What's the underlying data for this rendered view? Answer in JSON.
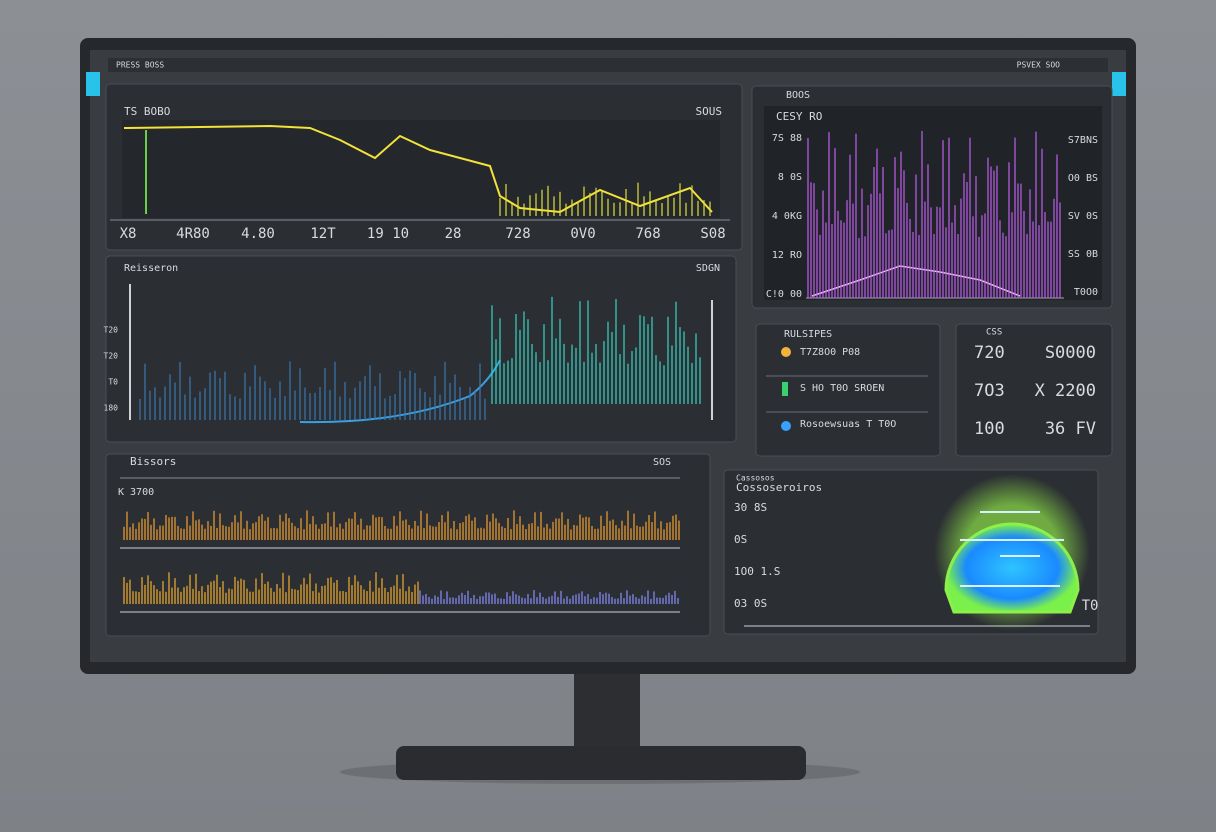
{
  "top_bar": {
    "left": "PRESS BOSS",
    "right": "PSVEX SOO"
  },
  "price_panel": {
    "title": "TS BOBO",
    "right": "SOUS",
    "x_labels": [
      "X8",
      "4R80",
      "4.80",
      "12T",
      "19 10",
      "28",
      "728",
      "0V0",
      "768",
      "S08"
    ]
  },
  "wave_panel": {
    "title": "Reisseron",
    "right": "SDGN",
    "y_labels": [
      "T20",
      "T20",
      "T0",
      "180"
    ]
  },
  "spectrum_panel": {
    "header": "BOOS",
    "title": "CESY RO",
    "left_labels": [
      "7S 88",
      "8 0S",
      "4 0KG",
      "12 RO",
      "C!0 00"
    ],
    "right_labels": [
      "S7BNS",
      "O0 BS",
      "SV 0S",
      "SS 0B",
      "T0O0"
    ]
  },
  "status_panel": {
    "title": "RULSIPES",
    "rows": [
      "T7Z8O0 P08",
      "S  HO T0O SROEN",
      "Rosoewsuas T T0O"
    ]
  },
  "readout_panel": {
    "header": "CSS",
    "rows": [
      [
        "720",
        "S0000"
      ],
      [
        "7O3",
        "X 2200"
      ],
      [
        "100",
        "36 FV"
      ]
    ]
  },
  "audio_panel": {
    "title": "Bissors",
    "badge": "SOS",
    "label": "K 3700"
  },
  "gauge_panel": {
    "header": "Cassosos",
    "title": "Cossoseroiros",
    "labels": [
      "30 8S",
      "0S",
      "1O0 1.S",
      "03 0S"
    ],
    "corner": "T0"
  }
}
